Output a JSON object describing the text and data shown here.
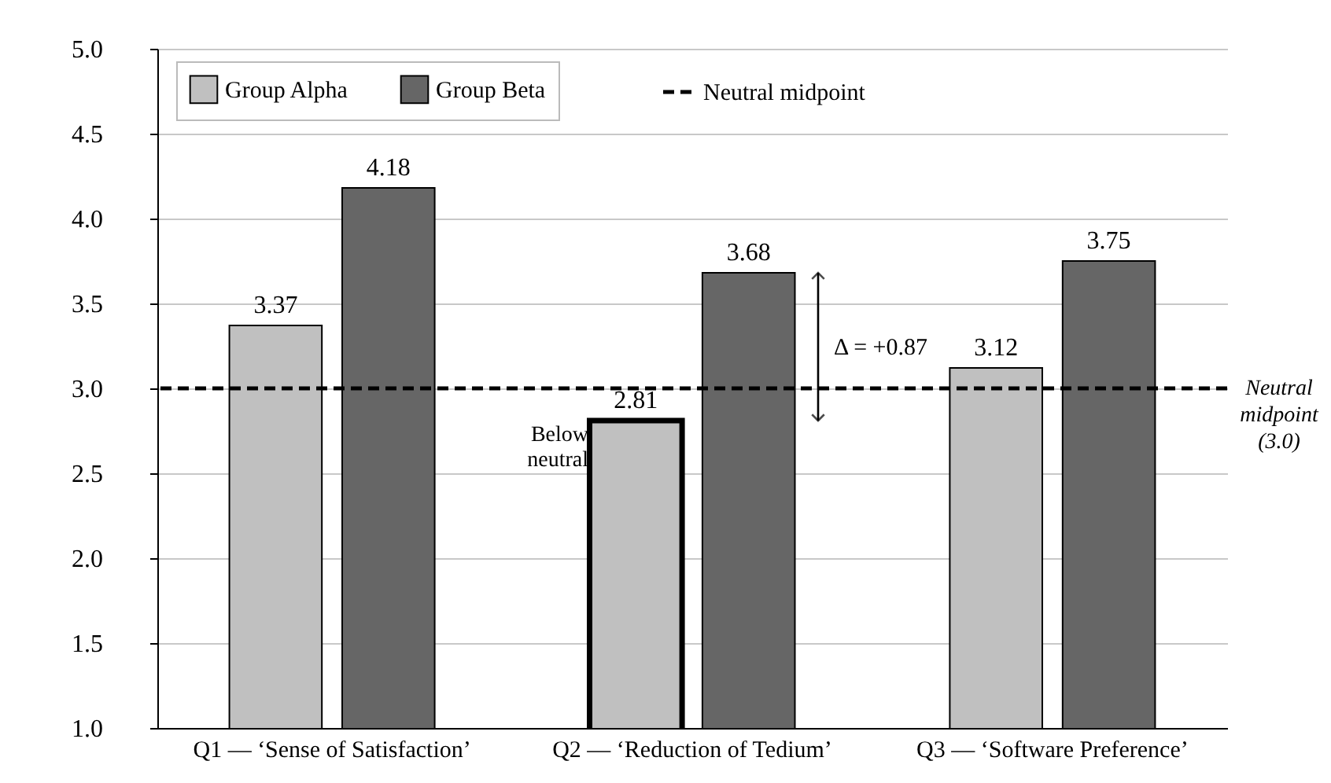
{
  "chart_data": {
    "type": "bar",
    "categories": [
      "Q1 — ‘Sense of Satisfaction’",
      "Q2 — ‘Reduction of Tedium’",
      "Q3 — ‘Software Preference’"
    ],
    "series": [
      {
        "name": "Group Alpha",
        "color": "#c0c0c0",
        "values": [
          3.37,
          2.81,
          3.12
        ]
      },
      {
        "name": "Group Beta",
        "color": "#666666",
        "values": [
          4.18,
          3.68,
          3.75
        ]
      }
    ],
    "ylim": [
      1.0,
      5.0
    ],
    "yticks": [
      {
        "value": 1,
        "label": "1.0"
      },
      1.5,
      {
        "value": 2,
        "label": "2.0"
      },
      2.5,
      {
        "value": 3,
        "label": "3.0"
      },
      3.5,
      {
        "value": 4,
        "label": "4.0"
      },
      4.5,
      {
        "value": 5,
        "label": "5.0"
      }
    ],
    "ref_lines": [
      {
        "axis": "y",
        "value": 3.0,
        "label": "Neutral midpoint",
        "color": "#000000",
        "line_style": "dashed"
      }
    ],
    "annotations": [
      "Below neutral",
      "Δ = +0.87",
      "Neutral midpoint (3.0)"
    ],
    "data_labels": true,
    "grid": "y",
    "legend": "top left"
  }
}
